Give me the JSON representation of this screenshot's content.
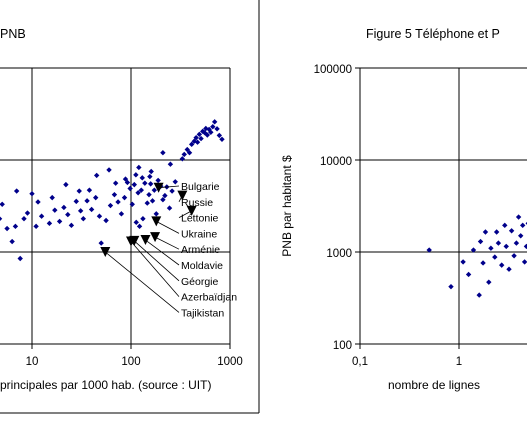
{
  "chart_data": [
    {
      "type": "scatter",
      "title_fragment": "PNB",
      "xscale": "log",
      "xlim": [
        1,
        1000
      ],
      "x_tick_labels": [
        "10",
        "100",
        "1000"
      ],
      "xlabel": "principales par 1000 hab. (source : UIT)",
      "ylabel": "",
      "grid": true,
      "marker_color": "#00008b",
      "points": [
        [
          1.3,
          1250
        ],
        [
          1.5,
          1150
        ],
        [
          1.7,
          1050
        ],
        [
          1.4,
          900
        ],
        [
          1.9,
          1350
        ],
        [
          2.0,
          1450
        ],
        [
          2.3,
          1150
        ],
        [
          2.6,
          1600
        ],
        [
          1.8,
          780
        ],
        [
          2.1,
          850
        ],
        [
          2.5,
          1000
        ],
        [
          3.0,
          1750
        ],
        [
          3.4,
          2000
        ],
        [
          4.2,
          1600
        ],
        [
          4.7,
          2300
        ],
        [
          5.6,
          1800
        ],
        [
          6.3,
          1300
        ],
        [
          6.8,
          1900
        ],
        [
          7.6,
          850
        ],
        [
          8.3,
          2300
        ],
        [
          9.0,
          2650
        ],
        [
          11.0,
          1900
        ],
        [
          12.5,
          2450
        ],
        [
          15.0,
          2050
        ],
        [
          17.0,
          2850
        ],
        [
          19.0,
          2150
        ],
        [
          21.0,
          3050
        ],
        [
          23.0,
          2550
        ],
        [
          25.0,
          1950
        ],
        [
          28.0,
          3550
        ],
        [
          31.0,
          2800
        ],
        [
          33.0,
          2300
        ],
        [
          36.0,
          3600
        ],
        [
          40.0,
          2900
        ],
        [
          44.0,
          3900
        ],
        [
          48.0,
          2450
        ],
        [
          50.0,
          1250
        ],
        [
          56.0,
          2200
        ],
        [
          62.0,
          3200
        ],
        [
          68.0,
          4200
        ],
        [
          74.0,
          3500
        ],
        [
          80.0,
          2600
        ],
        [
          86.0,
          3900
        ],
        [
          92.0,
          5700
        ],
        [
          98.0,
          4900
        ],
        [
          103.0,
          3300
        ],
        [
          108.0,
          5400
        ],
        [
          113.0,
          2100
        ],
        [
          118.0,
          4400
        ],
        [
          122.0,
          1900
        ],
        [
          127.0,
          4700
        ],
        [
          132.0,
          2300
        ],
        [
          138.0,
          5600
        ],
        [
          146.0,
          3400
        ],
        [
          152.0,
          4200
        ],
        [
          158.0,
          5500
        ],
        [
          165.0,
          3600
        ],
        [
          172.0,
          4700
        ],
        [
          180.0,
          2600
        ],
        [
          188.0,
          6000
        ],
        [
          200.0,
          5200
        ],
        [
          210.0,
          3700
        ],
        [
          220.0,
          4100
        ],
        [
          230.0,
          5100
        ],
        [
          245.0,
          3000
        ],
        [
          260.0,
          4600
        ],
        [
          280.0,
          5800
        ],
        [
          330.0,
          10300
        ],
        [
          345.0,
          11500
        ],
        [
          370.0,
          13000
        ],
        [
          390.0,
          12000
        ],
        [
          410.0,
          14800
        ],
        [
          435.0,
          16000
        ],
        [
          455.0,
          17500
        ],
        [
          470.0,
          15600
        ],
        [
          490.0,
          19000
        ],
        [
          510.0,
          17100
        ],
        [
          530.0,
          20500
        ],
        [
          555.0,
          19800
        ],
        [
          570.0,
          22000
        ],
        [
          590.0,
          18700
        ],
        [
          615.0,
          21500
        ],
        [
          640.0,
          20000
        ],
        [
          670.0,
          23000
        ],
        [
          700.0,
          26000
        ],
        [
          740.0,
          21800
        ],
        [
          780.0,
          18500
        ],
        [
          830.0,
          16800
        ],
        [
          250.0,
          9000
        ],
        [
          210.0,
          12000
        ],
        [
          160.0,
          7500
        ],
        [
          155.0,
          6600
        ],
        [
          130.0,
          6400
        ],
        [
          120.0,
          8300
        ],
        [
          112.0,
          6900
        ],
        [
          88.0,
          6200
        ],
        [
          70.0,
          5600
        ],
        [
          60.0,
          7800
        ],
        [
          45.0,
          6800
        ],
        [
          38.0,
          4700
        ],
        [
          30.0,
          4600
        ],
        [
          22.0,
          5400
        ],
        [
          16.0,
          3900
        ],
        [
          11.5,
          3500
        ],
        [
          10.0,
          4300
        ],
        [
          7.0,
          4600
        ],
        [
          5.0,
          3300
        ],
        [
          4.0,
          2800
        ],
        [
          3.6,
          900
        ]
      ],
      "highlighted": [
        {
          "label": "Bulgarie",
          "x": 190,
          "y": 5000
        },
        {
          "label": "Russie",
          "x": 330,
          "y": 4100
        },
        {
          "label": "Léttonie",
          "x": 410,
          "y": 2800
        },
        {
          "label": "Ukraine",
          "x": 180,
          "y": 2150
        },
        {
          "label": "Arménie",
          "x": 175,
          "y": 1450
        },
        {
          "label": "Moldavie",
          "x": 140,
          "y": 1350
        },
        {
          "label": "Géorgie",
          "x": 108,
          "y": 1320
        },
        {
          "label": "Azerbaïdjan",
          "x": 100,
          "y": 1300
        },
        {
          "label": "Tajikistan",
          "x": 55,
          "y": 1000
        }
      ]
    },
    {
      "type": "scatter",
      "title_fragment": "Figure 5 Téléphone et P",
      "xscale": "log",
      "yscale": "log",
      "x_tick_labels": [
        "0,1",
        "1"
      ],
      "y_tick_labels": [
        "100000",
        "10000",
        "1000",
        "100"
      ],
      "ylim": [
        100,
        100000
      ],
      "xlabel": "nombre de lignes",
      "ylabel": "PNB par habitant $",
      "grid": true,
      "marker_color": "#00008b",
      "points": [
        [
          0.5,
          1050
        ],
        [
          0.83,
          420
        ],
        [
          1.1,
          780
        ],
        [
          1.25,
          570
        ],
        [
          1.4,
          1050
        ],
        [
          1.6,
          340
        ],
        [
          1.65,
          1300
        ],
        [
          1.75,
          760
        ],
        [
          1.85,
          1650
        ],
        [
          2.0,
          470
        ],
        [
          2.1,
          1100
        ],
        [
          2.3,
          880
        ],
        [
          2.4,
          1650
        ],
        [
          2.5,
          1250
        ],
        [
          2.7,
          720
        ],
        [
          2.9,
          1950
        ],
        [
          3.0,
          1150
        ],
        [
          3.2,
          650
        ],
        [
          3.4,
          1700
        ],
        [
          3.6,
          910
        ],
        [
          3.8,
          1250
        ],
        [
          4.0,
          2400
        ],
        [
          4.2,
          1500
        ],
        [
          4.4,
          1950
        ],
        [
          4.6,
          780
        ],
        [
          4.8,
          1150
        ],
        [
          5.0,
          2050
        ]
      ]
    }
  ]
}
